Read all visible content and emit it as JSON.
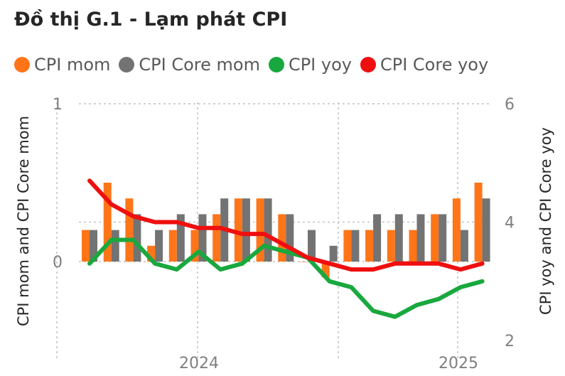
{
  "title": "Đồ thị G.1 - Lạm phát CPI",
  "legend": [
    {
      "label": "CPI mom",
      "color": "#ff7518"
    },
    {
      "label": "CPI Core mom",
      "color": "#737373"
    },
    {
      "label": "CPI yoy",
      "color": "#19a83e"
    },
    {
      "label": "CPI Core yoy",
      "color": "#ef0f0f"
    }
  ],
  "chart_data": {
    "type": "bar",
    "title": "Đồ thị G.1 - Lạm phát CPI",
    "ylabel_left": "CPI mom and CPI Core mom",
    "ylabel_right": "CPI yoy and CPI Core yoy",
    "ylim_left": [
      -0.6,
      1
    ],
    "ylim_right": [
      2,
      6
    ],
    "yticks_left": [
      "1",
      "0"
    ],
    "yticks_right": [
      "6",
      "4",
      "2"
    ],
    "xticks": [
      "2024",
      "2025"
    ],
    "grid": true,
    "legend_position": "top",
    "series": [
      {
        "name": "CPI mom",
        "type": "bar",
        "axis": "left",
        "color": "#ff7518",
        "values": [
          0.2,
          0.5,
          0.4,
          0.1,
          0.2,
          0.2,
          0.3,
          0.4,
          0.4,
          0.3,
          0.0,
          -0.1,
          0.2,
          0.2,
          0.2,
          0.2,
          0.3,
          0.4,
          0.5
        ]
      },
      {
        "name": "CPI Core mom",
        "type": "bar",
        "axis": "left",
        "color": "#737373",
        "values": [
          0.2,
          0.2,
          0.3,
          0.2,
          0.3,
          0.3,
          0.4,
          0.4,
          0.4,
          0.3,
          0.2,
          0.1,
          0.2,
          0.3,
          0.3,
          0.3,
          0.3,
          0.2,
          0.4
        ]
      },
      {
        "name": "CPI yoy",
        "type": "line",
        "axis": "right",
        "color": "#19a83e",
        "values": [
          3.3,
          3.7,
          3.7,
          3.3,
          3.2,
          3.5,
          3.2,
          3.3,
          3.6,
          3.5,
          3.4,
          3.0,
          2.9,
          2.5,
          2.4,
          2.6,
          2.7,
          2.9,
          3.0
        ]
      },
      {
        "name": "CPI Core yoy",
        "type": "line",
        "axis": "right",
        "color": "#ef0f0f",
        "values": [
          4.7,
          4.3,
          4.1,
          4.0,
          4.0,
          3.9,
          3.9,
          3.8,
          3.8,
          3.6,
          3.4,
          3.3,
          3.2,
          3.2,
          3.3,
          3.3,
          3.3,
          3.2,
          3.3
        ]
      }
    ]
  }
}
